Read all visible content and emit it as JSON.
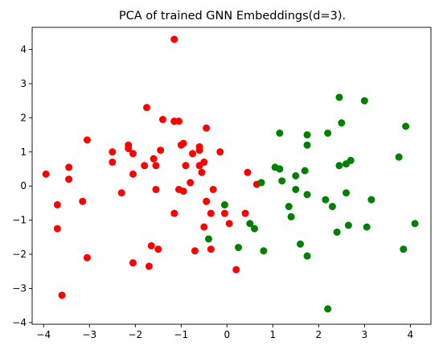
{
  "chart_data": {
    "type": "scatter",
    "title": "PCA of trained GNN Embeddings(d=3).",
    "xlabel": "",
    "ylabel": "",
    "xlim": [
      -4.25,
      4.45
    ],
    "ylim": [
      -4.05,
      4.65
    ],
    "xticks": [
      -4,
      -3,
      -2,
      -1,
      0,
      1,
      2,
      3,
      4
    ],
    "yticks": [
      -4,
      -3,
      -2,
      -1,
      0,
      1,
      2,
      3,
      4
    ],
    "grid": false,
    "series": [
      {
        "color": "#ff0000",
        "points": [
          [
            -1.15,
            4.3
          ],
          [
            -1.75,
            2.3
          ],
          [
            -1.05,
            1.9
          ],
          [
            -1.15,
            1.9
          ],
          [
            -1.4,
            1.95
          ],
          [
            -0.45,
            1.7
          ],
          [
            -3.05,
            1.35
          ],
          [
            -0.95,
            1.25
          ],
          [
            -1.0,
            1.2
          ],
          [
            -2.15,
            1.2
          ],
          [
            -2.15,
            1.1
          ],
          [
            -0.6,
            1.15
          ],
          [
            -0.6,
            1.05
          ],
          [
            -2.5,
            1.0
          ],
          [
            -1.45,
            1.05
          ],
          [
            -2.05,
            0.95
          ],
          [
            -0.75,
            0.95
          ],
          [
            -0.15,
            1.0
          ],
          [
            -1.6,
            0.8
          ],
          [
            -0.5,
            0.7
          ],
          [
            -2.5,
            0.7
          ],
          [
            -1.8,
            0.6
          ],
          [
            -0.9,
            0.6
          ],
          [
            -0.6,
            0.6
          ],
          [
            -3.45,
            0.55
          ],
          [
            -1.55,
            0.6
          ],
          [
            -0.55,
            0.4
          ],
          [
            0.45,
            0.4
          ],
          [
            -3.95,
            0.35
          ],
          [
            -2.05,
            0.35
          ],
          [
            -3.45,
            0.2
          ],
          [
            -0.8,
            0.1
          ],
          [
            0.65,
            0.05
          ],
          [
            -1.55,
            -0.1
          ],
          [
            -1.05,
            -0.1
          ],
          [
            -0.95,
            -0.15
          ],
          [
            -0.3,
            -0.1
          ],
          [
            -2.3,
            -0.2
          ],
          [
            -0.05,
            -0.8
          ],
          [
            -3.15,
            -0.45
          ],
          [
            -0.45,
            -0.45
          ],
          [
            -3.7,
            -0.55
          ],
          [
            -1.15,
            -0.8
          ],
          [
            -0.35,
            -0.8
          ],
          [
            0.4,
            -0.8
          ],
          [
            0.05,
            -1.1
          ],
          [
            -0.5,
            -1.2
          ],
          [
            -3.7,
            -1.25
          ],
          [
            -1.65,
            -1.75
          ],
          [
            -1.5,
            -1.85
          ],
          [
            -0.7,
            -1.9
          ],
          [
            -0.35,
            -1.85
          ],
          [
            -3.05,
            -2.1
          ],
          [
            -2.05,
            -2.25
          ],
          [
            -1.7,
            -2.35
          ],
          [
            0.2,
            -2.45
          ],
          [
            -3.6,
            -3.2
          ]
        ]
      },
      {
        "color": "#008000",
        "points": [
          [
            2.45,
            2.6
          ],
          [
            3.0,
            2.5
          ],
          [
            2.5,
            1.85
          ],
          [
            3.9,
            1.75
          ],
          [
            1.15,
            1.55
          ],
          [
            2.2,
            1.55
          ],
          [
            1.75,
            1.5
          ],
          [
            1.75,
            1.2
          ],
          [
            3.75,
            0.85
          ],
          [
            2.7,
            0.75
          ],
          [
            2.6,
            0.65
          ],
          [
            2.45,
            0.6
          ],
          [
            1.05,
            0.55
          ],
          [
            1.15,
            0.5
          ],
          [
            1.7,
            0.45
          ],
          [
            1.5,
            0.3
          ],
          [
            1.2,
            0.15
          ],
          [
            0.75,
            0.1
          ],
          [
            1.5,
            -0.1
          ],
          [
            2.6,
            -0.2
          ],
          [
            1.75,
            -0.25
          ],
          [
            2.15,
            -0.4
          ],
          [
            3.15,
            -0.4
          ],
          [
            -0.05,
            -0.55
          ],
          [
            1.35,
            -0.6
          ],
          [
            2.3,
            -0.6
          ],
          [
            1.4,
            -0.9
          ],
          [
            0.5,
            -1.1
          ],
          [
            4.1,
            -1.1
          ],
          [
            2.65,
            -1.15
          ],
          [
            3.05,
            -1.2
          ],
          [
            0.6,
            -1.25
          ],
          [
            2.4,
            -1.35
          ],
          [
            -0.4,
            -1.55
          ],
          [
            1.6,
            -1.7
          ],
          [
            0.25,
            -1.8
          ],
          [
            3.85,
            -1.85
          ],
          [
            0.8,
            -1.9
          ],
          [
            1.75,
            -2.05
          ],
          [
            2.2,
            -3.6
          ]
        ]
      }
    ]
  }
}
